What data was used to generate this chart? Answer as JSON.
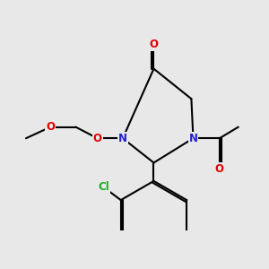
{
  "background_color": "#e8e8e8",
  "atom_colors": {
    "C": "#000000",
    "N": "#2222cc",
    "O": "#dd0000",
    "Cl": "#22aa22"
  },
  "figsize": [
    3.0,
    3.0
  ],
  "dpi": 100,
  "lw": 1.5,
  "font_size": 8.5
}
